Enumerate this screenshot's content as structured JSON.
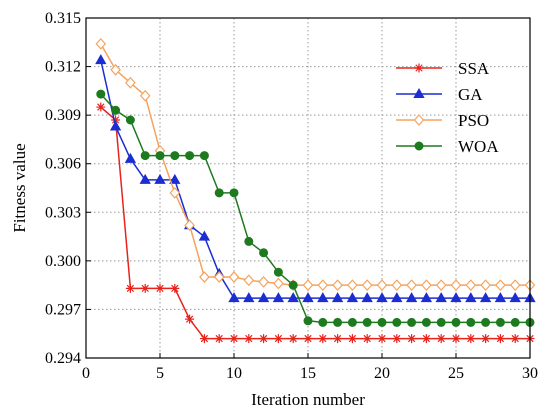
{
  "chart_data": {
    "type": "line",
    "xlabel": "Iteration number",
    "ylabel": "Fitness value",
    "xlim": [
      0,
      30
    ],
    "ylim": [
      0.294,
      0.315
    ],
    "xticks": [
      0,
      5,
      10,
      15,
      20,
      25,
      30
    ],
    "yticks": [
      0.294,
      0.297,
      0.3,
      0.303,
      0.306,
      0.309,
      0.312,
      0.315
    ],
    "ytick_labels": [
      "0.294",
      "0.297",
      "0.300",
      "0.303",
      "0.306",
      "0.309",
      "0.312",
      "0.315"
    ],
    "grid": true,
    "legend_position": "top-right",
    "x": [
      1,
      2,
      3,
      4,
      5,
      6,
      7,
      8,
      9,
      10,
      11,
      12,
      13,
      14,
      15,
      16,
      17,
      18,
      19,
      20,
      21,
      22,
      23,
      24,
      25,
      26,
      27,
      28,
      29,
      30
    ],
    "series": [
      {
        "name": "SSA",
        "color": "#e8231c",
        "marker": "star",
        "values": [
          0.3095,
          0.3087,
          0.2983,
          0.2983,
          0.2983,
          0.2983,
          0.2964,
          0.2952,
          0.2952,
          0.2952,
          0.2952,
          0.2952,
          0.2952,
          0.2952,
          0.2952,
          0.2952,
          0.2952,
          0.2952,
          0.2952,
          0.2952,
          0.2952,
          0.2952,
          0.2952,
          0.2952,
          0.2952,
          0.2952,
          0.2952,
          0.2952,
          0.2952,
          0.2952
        ]
      },
      {
        "name": "GA",
        "color": "#1c2ed1",
        "marker": "triangle",
        "values": [
          0.3124,
          0.3083,
          0.3063,
          0.305,
          0.305,
          0.305,
          0.3022,
          0.3015,
          0.2992,
          0.2977,
          0.2977,
          0.2977,
          0.2977,
          0.2977,
          0.2977,
          0.2977,
          0.2977,
          0.2977,
          0.2977,
          0.2977,
          0.2977,
          0.2977,
          0.2977,
          0.2977,
          0.2977,
          0.2977,
          0.2977,
          0.2977,
          0.2977,
          0.2977
        ]
      },
      {
        "name": "PSO",
        "color": "#f5a35c",
        "marker": "diamond",
        "values": [
          0.3134,
          0.3118,
          0.311,
          0.3102,
          0.3068,
          0.3042,
          0.3022,
          0.299,
          0.299,
          0.299,
          0.2988,
          0.2987,
          0.2986,
          0.2985,
          0.2985,
          0.2985,
          0.2985,
          0.2985,
          0.2985,
          0.2985,
          0.2985,
          0.2985,
          0.2985,
          0.2985,
          0.2985,
          0.2985,
          0.2985,
          0.2985,
          0.2985,
          0.2985
        ]
      },
      {
        "name": "WOA",
        "color": "#1e7a1e",
        "marker": "circle",
        "values": [
          0.3103,
          0.3093,
          0.3087,
          0.3065,
          0.3065,
          0.3065,
          0.3065,
          0.3065,
          0.3042,
          0.3042,
          0.3012,
          0.3005,
          0.2993,
          0.2985,
          0.2963,
          0.2962,
          0.2962,
          0.2962,
          0.2962,
          0.2962,
          0.2962,
          0.2962,
          0.2962,
          0.2962,
          0.2962,
          0.2962,
          0.2962,
          0.2962,
          0.2962,
          0.2962
        ]
      }
    ]
  }
}
